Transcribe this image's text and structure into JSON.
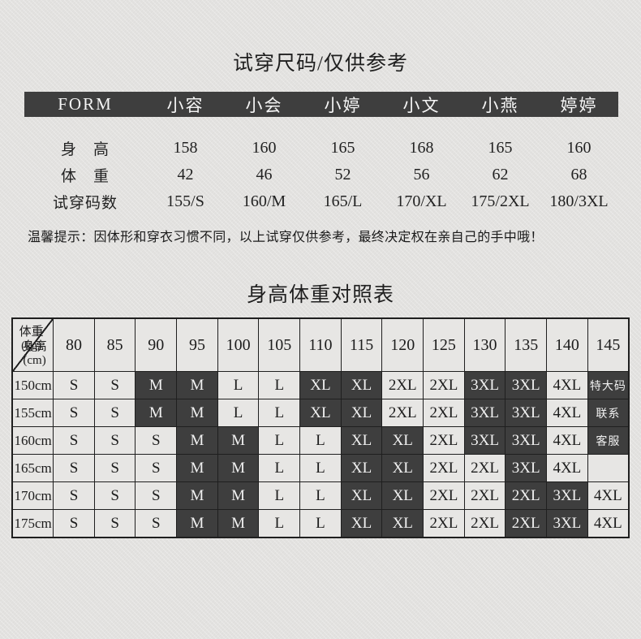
{
  "colors": {
    "background": "#e3e2e0",
    "dark_cell": "#3e3e3e",
    "border": "#1f1f1f",
    "text": "#1c1c1c",
    "light_text": "#f1f1f1"
  },
  "try_on": {
    "title": "试穿尺码/仅供参考",
    "table_label": "FORM",
    "models": [
      "小容",
      "小会",
      "小婷",
      "小文",
      "小燕",
      "婷婷"
    ],
    "rows": [
      {
        "label": "身　高",
        "values": [
          "158",
          "160",
          "165",
          "168",
          "165",
          "160"
        ]
      },
      {
        "label": "体　重",
        "values": [
          "42",
          "46",
          "52",
          "56",
          "62",
          "68"
        ]
      },
      {
        "label": "试穿码数",
        "values": [
          "155/S",
          "160/M",
          "165/L",
          "170/XL",
          "175/2XL",
          "180/3XL"
        ]
      }
    ],
    "tip": "温馨提示：因体形和穿衣习惯不同，以上试穿仅供参考，最终决定权在亲自己的手中哦！"
  },
  "size_chart": {
    "title": "身高体重对照表",
    "corner_top_label": "体重(kg)",
    "corner_bottom_label": "身高(cm)",
    "weights": [
      "80",
      "85",
      "90",
      "95",
      "100",
      "105",
      "110",
      "115",
      "120",
      "125",
      "130",
      "135",
      "140",
      "145"
    ],
    "rows": [
      {
        "height": "150cm",
        "cells": [
          {
            "text": "S",
            "dark": false
          },
          {
            "text": "S",
            "dark": false
          },
          {
            "text": "M",
            "dark": true
          },
          {
            "text": "M",
            "dark": true
          },
          {
            "text": "L",
            "dark": false
          },
          {
            "text": "L",
            "dark": false
          },
          {
            "text": "XL",
            "dark": true
          },
          {
            "text": "XL",
            "dark": true
          },
          {
            "text": "2XL",
            "dark": false
          },
          {
            "text": "2XL",
            "dark": false
          },
          {
            "text": "3XL",
            "dark": true
          },
          {
            "text": "3XL",
            "dark": true
          },
          {
            "text": "4XL",
            "dark": false
          },
          {
            "text": "特大码",
            "dark": true
          }
        ]
      },
      {
        "height": "155cm",
        "cells": [
          {
            "text": "S",
            "dark": false
          },
          {
            "text": "S",
            "dark": false
          },
          {
            "text": "M",
            "dark": true
          },
          {
            "text": "M",
            "dark": true
          },
          {
            "text": "L",
            "dark": false
          },
          {
            "text": "L",
            "dark": false
          },
          {
            "text": "XL",
            "dark": true
          },
          {
            "text": "XL",
            "dark": true
          },
          {
            "text": "2XL",
            "dark": false
          },
          {
            "text": "2XL",
            "dark": false
          },
          {
            "text": "3XL",
            "dark": true
          },
          {
            "text": "3XL",
            "dark": true
          },
          {
            "text": "4XL",
            "dark": false
          },
          {
            "text": "联系",
            "dark": true
          }
        ]
      },
      {
        "height": "160cm",
        "cells": [
          {
            "text": "S",
            "dark": false
          },
          {
            "text": "S",
            "dark": false
          },
          {
            "text": "S",
            "dark": false
          },
          {
            "text": "M",
            "dark": true
          },
          {
            "text": "M",
            "dark": true
          },
          {
            "text": "L",
            "dark": false
          },
          {
            "text": "L",
            "dark": false
          },
          {
            "text": "XL",
            "dark": true
          },
          {
            "text": "XL",
            "dark": true
          },
          {
            "text": "2XL",
            "dark": false
          },
          {
            "text": "3XL",
            "dark": true
          },
          {
            "text": "3XL",
            "dark": true
          },
          {
            "text": "4XL",
            "dark": false
          },
          {
            "text": "客服",
            "dark": true
          }
        ]
      },
      {
        "height": "165cm",
        "cells": [
          {
            "text": "S",
            "dark": false
          },
          {
            "text": "S",
            "dark": false
          },
          {
            "text": "S",
            "dark": false
          },
          {
            "text": "M",
            "dark": true
          },
          {
            "text": "M",
            "dark": true
          },
          {
            "text": "L",
            "dark": false
          },
          {
            "text": "L",
            "dark": false
          },
          {
            "text": "XL",
            "dark": true
          },
          {
            "text": "XL",
            "dark": true
          },
          {
            "text": "2XL",
            "dark": false
          },
          {
            "text": "2XL",
            "dark": false
          },
          {
            "text": "3XL",
            "dark": true
          },
          {
            "text": "4XL",
            "dark": false
          },
          {
            "text": "",
            "dark": false
          }
        ]
      },
      {
        "height": "170cm",
        "cells": [
          {
            "text": "S",
            "dark": false
          },
          {
            "text": "S",
            "dark": false
          },
          {
            "text": "S",
            "dark": false
          },
          {
            "text": "M",
            "dark": true
          },
          {
            "text": "M",
            "dark": true
          },
          {
            "text": "L",
            "dark": false
          },
          {
            "text": "L",
            "dark": false
          },
          {
            "text": "XL",
            "dark": true
          },
          {
            "text": "XL",
            "dark": true
          },
          {
            "text": "2XL",
            "dark": false
          },
          {
            "text": "2XL",
            "dark": false
          },
          {
            "text": "2XL",
            "dark": true
          },
          {
            "text": "3XL",
            "dark": true
          },
          {
            "text": "4XL",
            "dark": false
          }
        ]
      },
      {
        "height": "175cm",
        "cells": [
          {
            "text": "S",
            "dark": false
          },
          {
            "text": "S",
            "dark": false
          },
          {
            "text": "S",
            "dark": false
          },
          {
            "text": "M",
            "dark": true
          },
          {
            "text": "M",
            "dark": true
          },
          {
            "text": "L",
            "dark": false
          },
          {
            "text": "L",
            "dark": false
          },
          {
            "text": "XL",
            "dark": true
          },
          {
            "text": "XL",
            "dark": true
          },
          {
            "text": "2XL",
            "dark": false
          },
          {
            "text": "2XL",
            "dark": false
          },
          {
            "text": "2XL",
            "dark": true
          },
          {
            "text": "3XL",
            "dark": true
          },
          {
            "text": "4XL",
            "dark": false
          }
        ]
      }
    ]
  }
}
